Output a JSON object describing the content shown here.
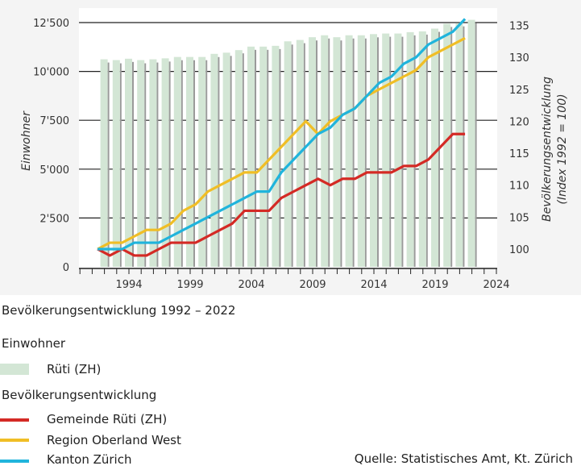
{
  "chart_data": {
    "type": "bar+line",
    "title": "Bevölkerungsentwicklung 1992 – 2022",
    "ylabel_left": "Einwohner",
    "ylabel_right": "Bevölkerungsentwicklung",
    "ylabel_right_sub": "(Index 1992 = 100)",
    "ylim_left": [
      0,
      12500
    ],
    "yticks_left": [
      "0",
      "2'500",
      "5'000",
      "7'500",
      "10'000",
      "12'500"
    ],
    "ylim_right": [
      100,
      135
    ],
    "yticks_right": [
      "100",
      "105",
      "110",
      "115",
      "120",
      "125",
      "130",
      "135"
    ],
    "xlim": [
      1990,
      2024
    ],
    "xticks": [
      "1994",
      "1999",
      "2004",
      "2009",
      "2014",
      "2019",
      "2024"
    ],
    "grid": "horizontal",
    "x": [
      1992,
      1993,
      1994,
      1995,
      1996,
      1997,
      1998,
      1999,
      2000,
      2001,
      2002,
      2003,
      2004,
      2005,
      2006,
      2007,
      2008,
      2009,
      2010,
      2011,
      2012,
      2013,
      2014,
      2015,
      2016,
      2017,
      2018,
      2019,
      2020,
      2021,
      2022
    ],
    "bars": {
      "name": "Rüti (ZH)",
      "axis": "left",
      "color": "#d3e6d5",
      "values": [
        10620,
        10580,
        10650,
        10580,
        10620,
        10670,
        10740,
        10740,
        10740,
        10900,
        10960,
        11090,
        11270,
        11270,
        11310,
        11540,
        11610,
        11750,
        11850,
        11750,
        11850,
        11850,
        11910,
        11940,
        11940,
        12010,
        12050,
        12190,
        12440,
        12470,
        12640
      ]
    },
    "series": [
      {
        "name": "Gemeinde Rüti (ZH)",
        "axis": "right",
        "color": "#d42a25",
        "values": [
          100,
          99,
          100,
          99,
          99,
          100,
          101,
          101,
          101,
          102,
          103,
          104,
          106,
          106,
          106,
          108,
          109,
          110,
          111,
          110,
          111,
          111,
          112,
          112,
          112,
          113,
          113,
          114,
          116,
          118,
          118
        ]
      },
      {
        "name": "Region Oberland West",
        "axis": "right",
        "color": "#f0be26",
        "values": [
          100,
          101,
          101,
          102,
          103,
          103,
          104,
          106,
          107,
          109,
          110,
          111,
          112,
          112,
          114,
          116,
          118,
          120,
          118,
          120,
          121,
          122,
          124,
          125,
          126,
          127,
          128,
          130,
          131,
          132,
          133
        ]
      },
      {
        "name": "Kanton Zürich",
        "axis": "right",
        "color": "#20b4dc",
        "values": [
          100,
          100,
          100,
          101,
          101,
          101,
          102,
          103,
          104,
          105,
          106,
          107,
          108,
          109,
          109,
          112,
          114,
          116,
          118,
          119,
          121,
          122,
          124,
          126,
          127,
          129,
          130,
          132,
          133,
          134,
          136
        ]
      }
    ]
  },
  "legend": {
    "title": "Bevölkerungsentwicklung 1992 – 2022",
    "group1": "Einwohner",
    "group2": "Bevölkerungsentwicklung"
  },
  "source": "Quelle: Statistisches Amt, Kt. Zürich"
}
